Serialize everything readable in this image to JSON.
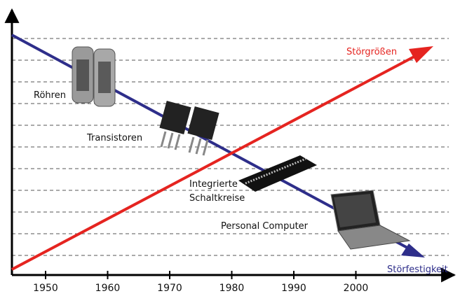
{
  "x_axis": {
    "ticks": [
      "1950",
      "1960",
      "1970",
      "1980",
      "1990",
      "2000"
    ]
  },
  "lines": {
    "disturbance": "Störgrößen",
    "immunity": "Störfestigkeit"
  },
  "items": {
    "tubes": "Röhren",
    "transistors": "Transistoren",
    "ic_line1": "Integrierte",
    "ic_line2": "Schaltkreise",
    "pc": "Personal Computer"
  }
}
